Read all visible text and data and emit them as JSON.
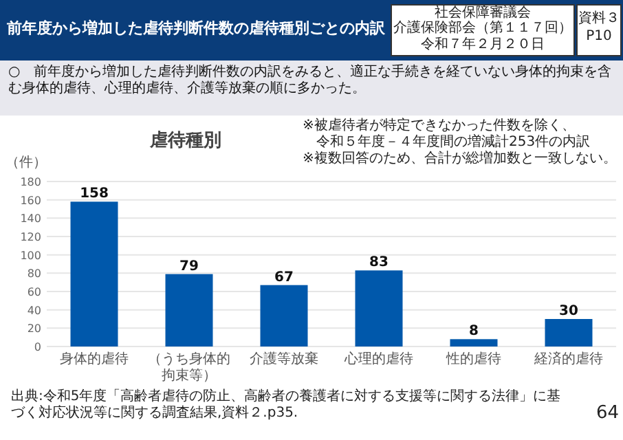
{
  "chart_data": {
    "type": "bar",
    "title": "虐待種別",
    "subtitle": "○　前年度から増加した虐待判断件数の内訳をみると、適正な手続きを経ていない身体的拘束を含む身体的虐待、心理的虐待、介護等放棄の順に多かった。",
    "ylabel": "（件）",
    "categories": [
      "身体的虐待",
      "（うち身体的拘束等）",
      "介護等放棄",
      "心理的虐待",
      "性的虐待",
      "経済的虐待"
    ],
    "values": [
      158,
      79,
      67,
      83,
      8,
      30
    ],
    "color": "#0058ab",
    "data_labels": true,
    "ylim": [
      0,
      180
    ],
    "yticks": [
      0,
      20,
      40,
      60,
      80,
      100,
      120,
      140,
      160,
      180
    ],
    "grid": "y",
    "annotations": [
      "前年度から増加した虐待判断件数の虐待種別ごとの内訳",
      "社会保障審議会",
      "介護保険部会（第１１７回）",
      "令和７年２月２０日",
      "資料３",
      "P10",
      "※被虐待者が特定できなかった件数を除く、",
      "令和５年度－４年度間の増減計253件の内訳",
      "※複数回答のため、合計が総増加数と一致しない。",
      "出典:令和5年度「高齢者虐待の防止、高齢者の養護者に対する支援等に関する法律」に基づく対応状況等に関する調査結果,資料２.p35.",
      "64"
    ]
  }
}
